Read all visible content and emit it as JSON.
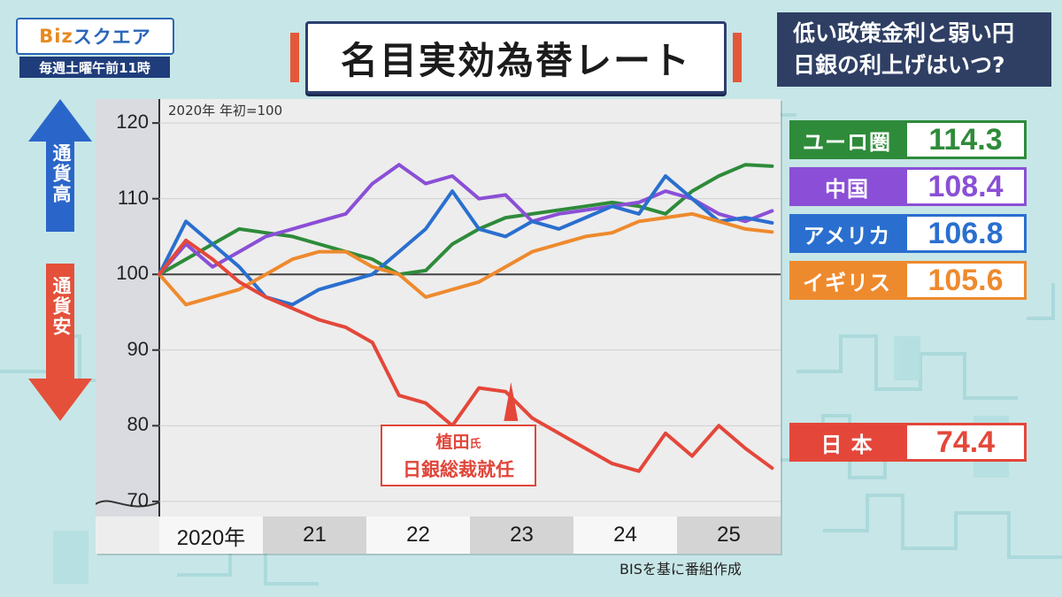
{
  "header": {
    "logo": "Bizスクエア",
    "logo_biz": "Biz",
    "logo_rest": "スクエア",
    "schedule": "毎週土曜午前11時",
    "title": "名目実効為替レート",
    "headline_line1": "低い政策金利と弱い円",
    "headline_line2": "日銀の利上げはいつ?"
  },
  "axis_arrows": {
    "up_label": "通貨高",
    "down_label": "通貨安",
    "up_color": "#2a66c9",
    "down_color": "#e4503a"
  },
  "colors": {
    "eurozone": "#2e8b3a",
    "china": "#8a4fd6",
    "usa": "#2a6fcf",
    "uk": "#ee8a2e",
    "japan": "#e4473a",
    "panel_bg": "#ededed",
    "page_bg": "#c7e6e7"
  },
  "legend": [
    {
      "name": "ユーロ圏",
      "value": "114.3",
      "color": "#2e8b3a"
    },
    {
      "name": "中国",
      "value": "108.4",
      "color": "#8a4fd6"
    },
    {
      "name": "アメリカ",
      "value": "106.8",
      "color": "#2a6fcf"
    },
    {
      "name": "イギリス",
      "value": "105.6",
      "color": "#ee8a2e"
    },
    {
      "name": "日 本",
      "value": "74.4",
      "color": "#e4473a"
    }
  ],
  "annotation": {
    "line1_main": "植田",
    "line1_small": "氏",
    "line2": "日銀総裁就任",
    "x": 2023.3
  },
  "source": "BISを基に番組作成",
  "chart_data": {
    "type": "line",
    "title": "名目実効為替レート",
    "base_note": "2020年 年初=100",
    "xlabel": "",
    "ylabel": "",
    "ylim": [
      68,
      122
    ],
    "xlim": [
      2020,
      2025.83
    ],
    "yticks": [
      70,
      80,
      90,
      100,
      110,
      120
    ],
    "reference_line": 100,
    "x_tick_labels": [
      "2020年",
      "21",
      "22",
      "23",
      "24",
      "25"
    ],
    "x": [
      2020.0,
      2020.25,
      2020.5,
      2020.75,
      2021.0,
      2021.25,
      2021.5,
      2021.75,
      2022.0,
      2022.25,
      2022.5,
      2022.75,
      2023.0,
      2023.25,
      2023.5,
      2023.75,
      2024.0,
      2024.25,
      2024.5,
      2024.75,
      2025.0,
      2025.25,
      2025.5,
      2025.75
    ],
    "series": [
      {
        "name": "ユーロ圏",
        "color": "#2e8b3a",
        "values": [
          100,
          102,
          104,
          106,
          105.5,
          105,
          104,
          103,
          102,
          100,
          100.5,
          104,
          106,
          107.5,
          108,
          108.5,
          109,
          109.5,
          109,
          108,
          111,
          113,
          114.5,
          114.3
        ]
      },
      {
        "name": "中国",
        "color": "#8a4fd6",
        "values": [
          100,
          104,
          101,
          103,
          105,
          106,
          107,
          108,
          112,
          114.5,
          112,
          113,
          110,
          110.5,
          107,
          108,
          108.5,
          109,
          109.5,
          111,
          110,
          108,
          107,
          108.4
        ]
      },
      {
        "name": "アメリカ",
        "color": "#2a6fcf",
        "values": [
          100,
          107,
          104,
          101,
          97,
          96,
          98,
          99,
          100,
          103,
          106,
          111,
          106,
          105,
          107,
          106,
          107.5,
          109,
          108,
          113,
          110,
          107,
          107.5,
          106.8
        ]
      },
      {
        "name": "イギリス",
        "color": "#ee8a2e",
        "values": [
          100,
          96,
          97,
          98,
          100,
          102,
          103,
          103,
          101,
          100,
          97,
          98,
          99,
          101,
          103,
          104,
          105,
          105.5,
          107,
          107.5,
          108,
          107,
          106,
          105.6
        ]
      },
      {
        "name": "日本",
        "color": "#e4473a",
        "values": [
          100,
          104.5,
          102,
          99,
          97,
          95.5,
          94,
          93,
          91,
          84,
          83,
          80,
          85,
          84.5,
          81,
          79,
          77,
          75,
          74,
          79,
          76,
          80,
          77,
          74.4
        ]
      }
    ]
  }
}
